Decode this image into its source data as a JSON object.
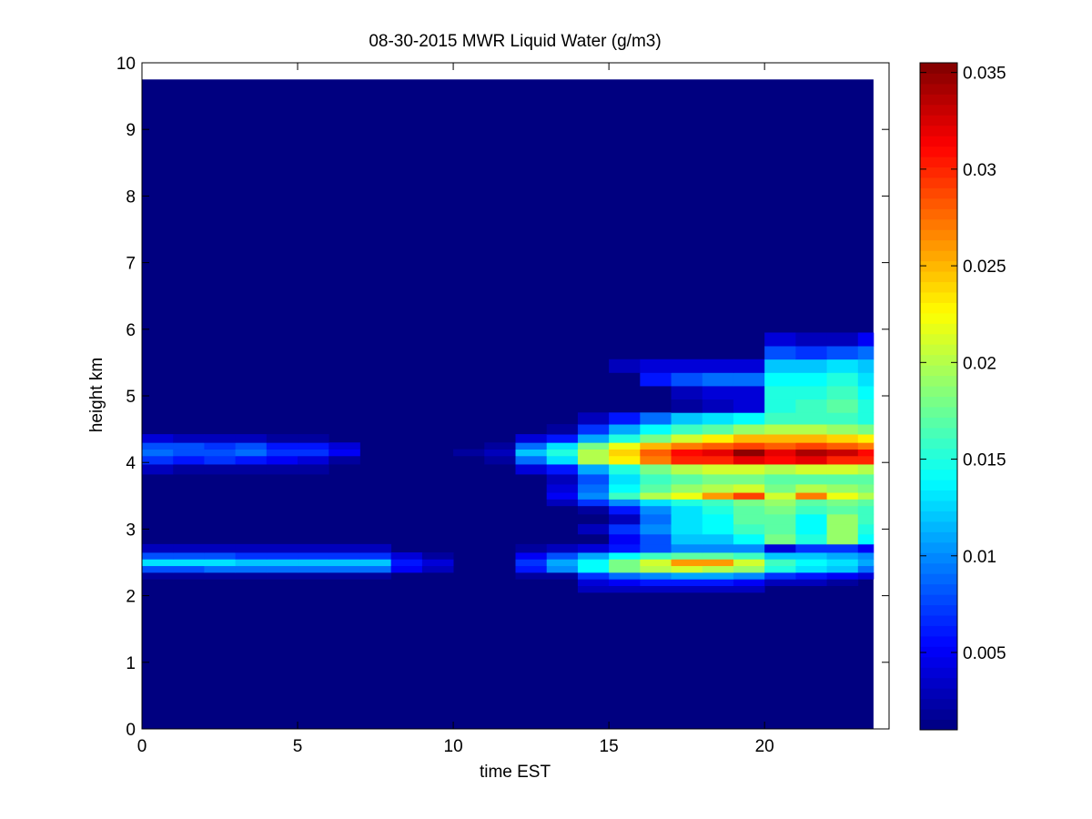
{
  "chart_data": {
    "type": "heatmap",
    "title": "08-30-2015 MWR Liquid Water (g/m3)",
    "xlabel": "time EST",
    "ylabel": "height km",
    "xlim": [
      0,
      24
    ],
    "ylim": [
      0,
      10
    ],
    "x_ticks": [
      0,
      5,
      10,
      15,
      20
    ],
    "y_ticks": [
      0,
      1,
      2,
      3,
      4,
      5,
      6,
      7,
      8,
      9,
      10
    ],
    "colorbar": {
      "colormap": "jet",
      "range": [
        0.001,
        0.0355
      ],
      "ticks": [
        0.005,
        0.01,
        0.015,
        0.02,
        0.025,
        0.03,
        0.035
      ],
      "tick_labels": [
        "0.005",
        "0.01",
        "0.015",
        "0.02",
        "0.025",
        "0.03",
        "0.035"
      ]
    },
    "grid": false,
    "x_centers": [
      0.5,
      1.5,
      2.5,
      3.5,
      4.5,
      5.5,
      6.5,
      7.5,
      8.5,
      9.5,
      10.5,
      11.5,
      12.5,
      13.5,
      14.5,
      15.5,
      16.5,
      17.5,
      18.5,
      19.5,
      20.5,
      21.5,
      22.5,
      23.5
    ],
    "data_extent": {
      "x": [
        0,
        23.5
      ],
      "y": [
        0,
        9.75
      ]
    },
    "background_value": 0.001,
    "height_levels": [
      2.1,
      2.2,
      2.3,
      2.4,
      2.5,
      2.6,
      2.7,
      2.85,
      3.0,
      3.15,
      3.3,
      3.4,
      3.5,
      3.6,
      3.75,
      3.9,
      4.05,
      4.15,
      4.25,
      4.35,
      4.5,
      4.65,
      4.85,
      5.05,
      5.25,
      5.45,
      5.65,
      5.85
    ],
    "values": [
      [
        0.001,
        0.001,
        0.001,
        0.001,
        0.001,
        0.001,
        0.001,
        0.001,
        0.001,
        0.001,
        0.001,
        0.001,
        0.001,
        0.001,
        0.003,
        0.003,
        0.003,
        0.003,
        0.003,
        0.003,
        0.001,
        0.001,
        0.001,
        0.001
      ],
      [
        0.001,
        0.001,
        0.001,
        0.001,
        0.001,
        0.001,
        0.001,
        0.001,
        0.001,
        0.001,
        0.001,
        0.001,
        0.001,
        0.001,
        0.004,
        0.005,
        0.006,
        0.006,
        0.006,
        0.005,
        0.003,
        0.003,
        0.002,
        0.001
      ],
      [
        0.002,
        0.002,
        0.002,
        0.002,
        0.002,
        0.002,
        0.002,
        0.002,
        0.001,
        0.001,
        0.001,
        0.001,
        0.002,
        0.002,
        0.007,
        0.009,
        0.01,
        0.011,
        0.011,
        0.01,
        0.007,
        0.006,
        0.005,
        0.004
      ],
      [
        0.008,
        0.008,
        0.009,
        0.009,
        0.009,
        0.009,
        0.009,
        0.009,
        0.005,
        0.003,
        0.001,
        0.001,
        0.006,
        0.01,
        0.014,
        0.018,
        0.02,
        0.021,
        0.02,
        0.019,
        0.015,
        0.013,
        0.012,
        0.009
      ],
      [
        0.013,
        0.013,
        0.013,
        0.012,
        0.012,
        0.012,
        0.012,
        0.012,
        0.006,
        0.004,
        0.001,
        0.001,
        0.007,
        0.011,
        0.014,
        0.018,
        0.021,
        0.026,
        0.026,
        0.021,
        0.016,
        0.014,
        0.013,
        0.011
      ],
      [
        0.008,
        0.008,
        0.008,
        0.007,
        0.007,
        0.007,
        0.007,
        0.007,
        0.004,
        0.002,
        0.001,
        0.001,
        0.005,
        0.008,
        0.011,
        0.014,
        0.016,
        0.017,
        0.017,
        0.016,
        0.012,
        0.012,
        0.011,
        0.01
      ],
      [
        0.003,
        0.003,
        0.003,
        0.003,
        0.003,
        0.003,
        0.003,
        0.003,
        0.001,
        0.001,
        0.001,
        0.001,
        0.002,
        0.003,
        0.004,
        0.006,
        0.008,
        0.01,
        0.01,
        0.01,
        0.004,
        0.007,
        0.007,
        0.005
      ],
      [
        0.001,
        0.001,
        0.001,
        0.001,
        0.001,
        0.001,
        0.001,
        0.001,
        0.001,
        0.001,
        0.001,
        0.001,
        0.001,
        0.001,
        0.001,
        0.005,
        0.008,
        0.012,
        0.012,
        0.014,
        0.018,
        0.015,
        0.019,
        0.014
      ],
      [
        0.001,
        0.001,
        0.001,
        0.001,
        0.001,
        0.001,
        0.001,
        0.001,
        0.001,
        0.001,
        0.001,
        0.001,
        0.001,
        0.001,
        0.003,
        0.007,
        0.01,
        0.013,
        0.014,
        0.016,
        0.017,
        0.014,
        0.019,
        0.015
      ],
      [
        0.001,
        0.001,
        0.001,
        0.001,
        0.001,
        0.001,
        0.001,
        0.001,
        0.001,
        0.001,
        0.001,
        0.001,
        0.001,
        0.001,
        0.001,
        0.003,
        0.009,
        0.013,
        0.014,
        0.017,
        0.017,
        0.014,
        0.019,
        0.016
      ],
      [
        0.001,
        0.001,
        0.001,
        0.001,
        0.001,
        0.001,
        0.001,
        0.001,
        0.001,
        0.001,
        0.001,
        0.001,
        0.001,
        0.001,
        0.002,
        0.006,
        0.01,
        0.013,
        0.015,
        0.017,
        0.018,
        0.016,
        0.017,
        0.016
      ],
      [
        0.001,
        0.001,
        0.001,
        0.001,
        0.001,
        0.001,
        0.001,
        0.001,
        0.001,
        0.001,
        0.001,
        0.001,
        0.001,
        0.003,
        0.007,
        0.01,
        0.013,
        0.015,
        0.016,
        0.018,
        0.019,
        0.017,
        0.018,
        0.017
      ],
      [
        0.001,
        0.001,
        0.001,
        0.001,
        0.001,
        0.001,
        0.001,
        0.001,
        0.001,
        0.001,
        0.001,
        0.001,
        0.001,
        0.005,
        0.01,
        0.016,
        0.02,
        0.022,
        0.026,
        0.029,
        0.021,
        0.027,
        0.022,
        0.02
      ],
      [
        0.001,
        0.001,
        0.001,
        0.001,
        0.001,
        0.001,
        0.001,
        0.001,
        0.001,
        0.001,
        0.001,
        0.001,
        0.001,
        0.004,
        0.009,
        0.014,
        0.017,
        0.019,
        0.02,
        0.021,
        0.018,
        0.02,
        0.019,
        0.018
      ],
      [
        0.001,
        0.001,
        0.001,
        0.001,
        0.001,
        0.001,
        0.001,
        0.001,
        0.001,
        0.001,
        0.001,
        0.001,
        0.001,
        0.003,
        0.008,
        0.013,
        0.016,
        0.017,
        0.018,
        0.018,
        0.017,
        0.017,
        0.017,
        0.017
      ],
      [
        0.003,
        0.002,
        0.002,
        0.002,
        0.002,
        0.002,
        0.001,
        0.001,
        0.001,
        0.001,
        0.001,
        0.001,
        0.004,
        0.006,
        0.011,
        0.015,
        0.018,
        0.02,
        0.021,
        0.021,
        0.02,
        0.021,
        0.021,
        0.02
      ],
      [
        0.007,
        0.006,
        0.007,
        0.006,
        0.005,
        0.004,
        0.002,
        0.001,
        0.001,
        0.001,
        0.001,
        0.002,
        0.009,
        0.013,
        0.02,
        0.023,
        0.027,
        0.03,
        0.03,
        0.032,
        0.031,
        0.032,
        0.03,
        0.03
      ],
      [
        0.009,
        0.008,
        0.008,
        0.009,
        0.007,
        0.007,
        0.005,
        0.001,
        0.001,
        0.001,
        0.002,
        0.003,
        0.012,
        0.015,
        0.02,
        0.024,
        0.028,
        0.031,
        0.032,
        0.035,
        0.032,
        0.034,
        0.033,
        0.031
      ],
      [
        0.008,
        0.008,
        0.007,
        0.008,
        0.006,
        0.006,
        0.004,
        0.001,
        0.001,
        0.001,
        0.001,
        0.002,
        0.009,
        0.013,
        0.018,
        0.022,
        0.025,
        0.027,
        0.028,
        0.029,
        0.028,
        0.029,
        0.028,
        0.027
      ],
      [
        0.004,
        0.003,
        0.003,
        0.003,
        0.002,
        0.002,
        0.001,
        0.001,
        0.001,
        0.001,
        0.001,
        0.001,
        0.004,
        0.006,
        0.011,
        0.015,
        0.018,
        0.021,
        0.023,
        0.025,
        0.025,
        0.025,
        0.024,
        0.023
      ],
      [
        0.001,
        0.001,
        0.001,
        0.001,
        0.001,
        0.001,
        0.001,
        0.001,
        0.001,
        0.001,
        0.001,
        0.001,
        0.001,
        0.002,
        0.007,
        0.011,
        0.014,
        0.016,
        0.017,
        0.019,
        0.02,
        0.02,
        0.019,
        0.018
      ],
      [
        0.001,
        0.001,
        0.001,
        0.001,
        0.001,
        0.001,
        0.001,
        0.001,
        0.001,
        0.001,
        0.001,
        0.001,
        0.001,
        0.001,
        0.003,
        0.006,
        0.009,
        0.012,
        0.013,
        0.014,
        0.016,
        0.016,
        0.016,
        0.015
      ],
      [
        0.001,
        0.001,
        0.001,
        0.001,
        0.001,
        0.001,
        0.001,
        0.001,
        0.001,
        0.001,
        0.001,
        0.001,
        0.001,
        0.001,
        0.001,
        0.001,
        0.001,
        0.002,
        0.003,
        0.004,
        0.015,
        0.016,
        0.017,
        0.015
      ],
      [
        0.001,
        0.001,
        0.001,
        0.001,
        0.001,
        0.001,
        0.001,
        0.001,
        0.001,
        0.001,
        0.001,
        0.001,
        0.001,
        0.001,
        0.001,
        0.001,
        0.001,
        0.003,
        0.004,
        0.004,
        0.015,
        0.015,
        0.016,
        0.014
      ],
      [
        0.001,
        0.001,
        0.001,
        0.001,
        0.001,
        0.001,
        0.001,
        0.001,
        0.001,
        0.001,
        0.001,
        0.001,
        0.001,
        0.001,
        0.001,
        0.001,
        0.006,
        0.008,
        0.009,
        0.009,
        0.014,
        0.014,
        0.015,
        0.013
      ],
      [
        0.001,
        0.001,
        0.001,
        0.001,
        0.001,
        0.001,
        0.001,
        0.001,
        0.001,
        0.001,
        0.001,
        0.001,
        0.001,
        0.001,
        0.001,
        0.003,
        0.004,
        0.004,
        0.004,
        0.004,
        0.012,
        0.012,
        0.013,
        0.012
      ],
      [
        0.001,
        0.001,
        0.001,
        0.001,
        0.001,
        0.001,
        0.001,
        0.001,
        0.001,
        0.001,
        0.001,
        0.001,
        0.001,
        0.001,
        0.001,
        0.001,
        0.001,
        0.001,
        0.001,
        0.001,
        0.008,
        0.007,
        0.008,
        0.009
      ],
      [
        0.001,
        0.001,
        0.001,
        0.001,
        0.001,
        0.001,
        0.001,
        0.001,
        0.001,
        0.001,
        0.001,
        0.001,
        0.001,
        0.001,
        0.001,
        0.001,
        0.001,
        0.001,
        0.001,
        0.001,
        0.004,
        0.003,
        0.003,
        0.005
      ]
    ]
  }
}
